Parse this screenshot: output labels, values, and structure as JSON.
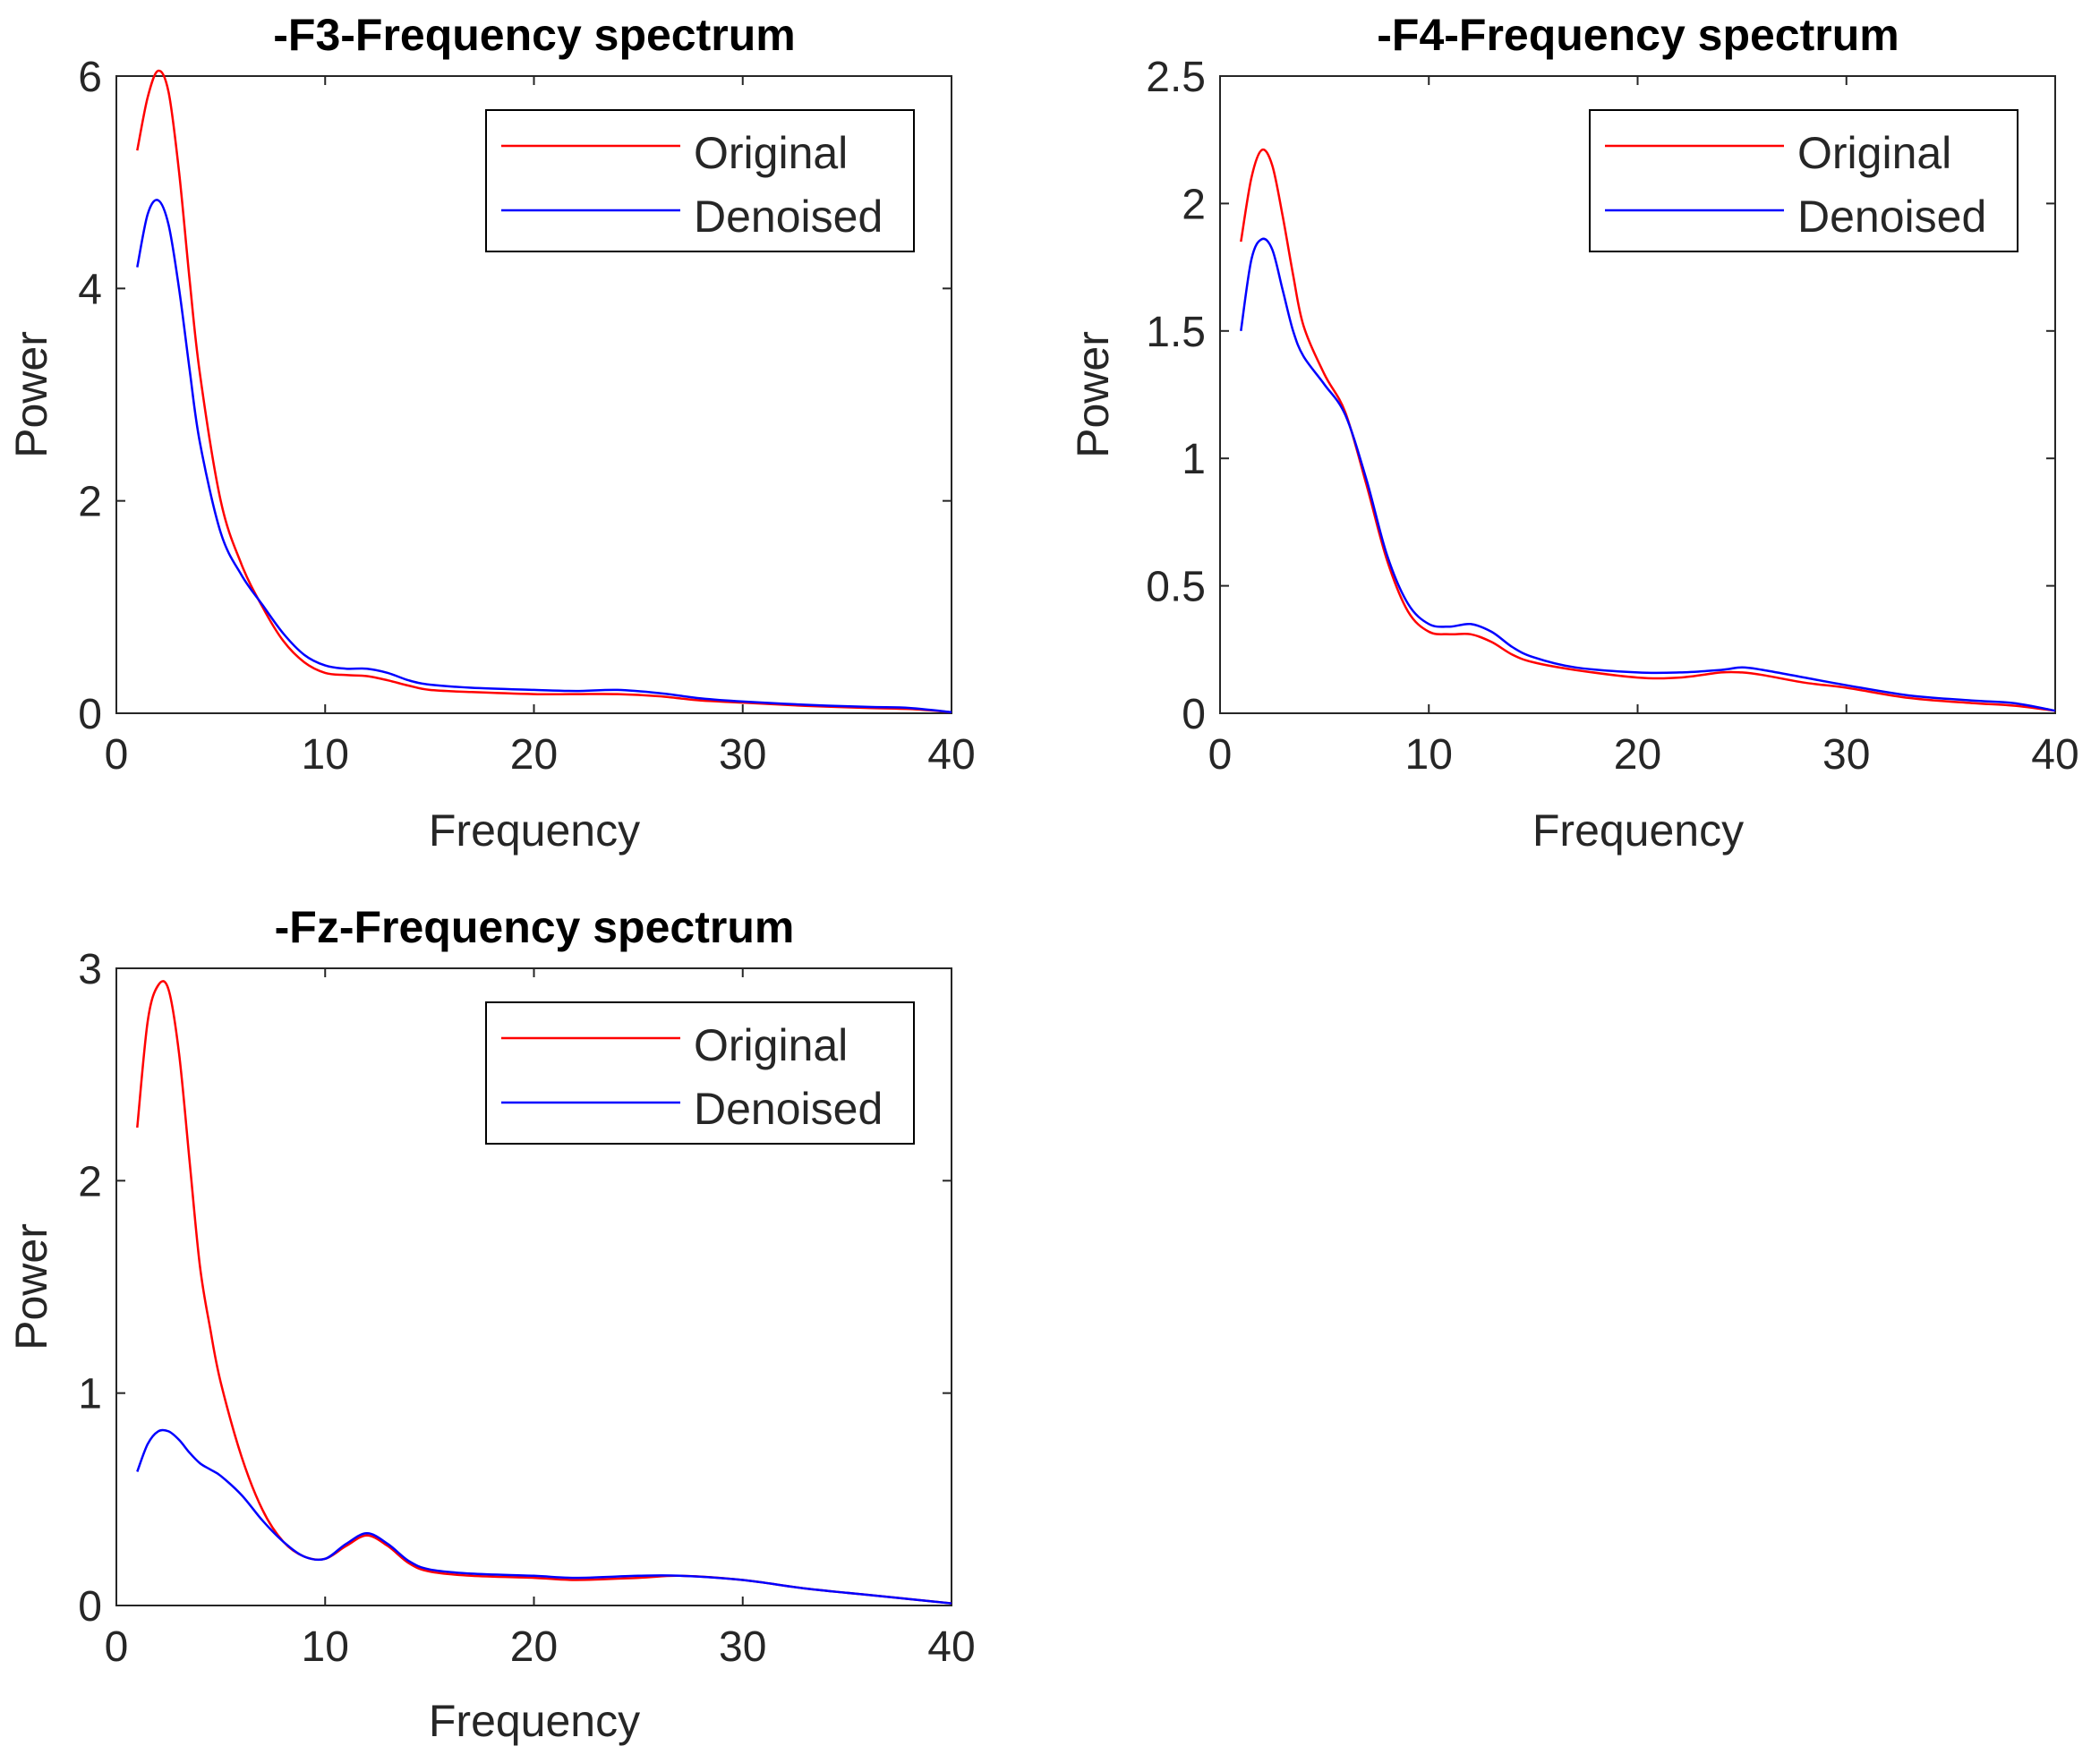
{
  "colors": {
    "original": "#ff0000",
    "denoised": "#0000ff",
    "axes": "#262626",
    "legend_border": "#000000"
  },
  "chart_data": [
    {
      "type": "line",
      "title": "-F3-Frequency spectrum",
      "xlabel": "Frequency",
      "ylabel": "Power",
      "xlim": [
        0,
        40
      ],
      "ylim": [
        0,
        6
      ],
      "xticks": [
        0,
        10,
        20,
        30,
        40
      ],
      "yticks": [
        0,
        2,
        4,
        6
      ],
      "grid": false,
      "legend_position": "top-right",
      "series": [
        {
          "name": "Original",
          "color": "#ff0000",
          "x": [
            1,
            1.5,
            2,
            2.5,
            3,
            3.5,
            4,
            5,
            6,
            7,
            8,
            9,
            10,
            11,
            12,
            13,
            14,
            15,
            17,
            20,
            22,
            24,
            26,
            28,
            30,
            33,
            36,
            38,
            40
          ],
          "y": [
            5.3,
            5.8,
            6.05,
            5.85,
            5.1,
            4.1,
            3.2,
            2.0,
            1.4,
            1.0,
            0.68,
            0.48,
            0.38,
            0.36,
            0.35,
            0.31,
            0.26,
            0.22,
            0.2,
            0.18,
            0.18,
            0.18,
            0.16,
            0.12,
            0.1,
            0.07,
            0.05,
            0.04,
            0.01
          ]
        },
        {
          "name": "Denoised",
          "color": "#0000ff",
          "x": [
            1,
            1.5,
            2,
            2.5,
            3,
            3.5,
            4,
            5,
            6,
            7,
            8,
            9,
            10,
            11,
            12,
            13,
            14,
            15,
            17,
            20,
            22,
            24,
            26,
            28,
            30,
            33,
            36,
            38,
            40
          ],
          "y": [
            4.2,
            4.7,
            4.83,
            4.6,
            4.0,
            3.25,
            2.55,
            1.7,
            1.3,
            1.02,
            0.75,
            0.55,
            0.45,
            0.42,
            0.42,
            0.38,
            0.31,
            0.27,
            0.24,
            0.22,
            0.21,
            0.22,
            0.19,
            0.14,
            0.11,
            0.08,
            0.06,
            0.05,
            0.01
          ]
        }
      ]
    },
    {
      "type": "line",
      "title": "-F4-Frequency spectrum",
      "xlabel": "Frequency",
      "ylabel": "Power",
      "xlim": [
        0,
        40
      ],
      "ylim": [
        0,
        2.5
      ],
      "xticks": [
        0,
        10,
        20,
        30,
        40
      ],
      "yticks": [
        0,
        0.5,
        1,
        1.5,
        2,
        2.5
      ],
      "grid": false,
      "legend_position": "top-right",
      "series": [
        {
          "name": "Original",
          "color": "#ff0000",
          "x": [
            1,
            1.5,
            2,
            2.5,
            3,
            3.5,
            4,
            5,
            6,
            7,
            8,
            9,
            10,
            11,
            12,
            13,
            14,
            15,
            17,
            20,
            22,
            24,
            25,
            26,
            28,
            30,
            33,
            36,
            38,
            40
          ],
          "y": [
            1.85,
            2.1,
            2.21,
            2.15,
            1.95,
            1.72,
            1.52,
            1.33,
            1.18,
            0.9,
            0.6,
            0.4,
            0.32,
            0.31,
            0.31,
            0.28,
            0.23,
            0.2,
            0.17,
            0.14,
            0.14,
            0.16,
            0.16,
            0.15,
            0.12,
            0.1,
            0.06,
            0.04,
            0.03,
            0.01
          ]
        },
        {
          "name": "Denoised",
          "color": "#0000ff",
          "x": [
            1,
            1.5,
            2,
            2.5,
            3,
            3.5,
            4,
            5,
            6,
            7,
            8,
            9,
            10,
            11,
            12,
            13,
            14,
            15,
            17,
            20,
            22,
            24,
            25,
            26,
            28,
            30,
            33,
            36,
            38,
            40
          ],
          "y": [
            1.5,
            1.78,
            1.86,
            1.82,
            1.66,
            1.5,
            1.4,
            1.29,
            1.17,
            0.92,
            0.62,
            0.43,
            0.35,
            0.34,
            0.35,
            0.32,
            0.26,
            0.22,
            0.18,
            0.16,
            0.16,
            0.17,
            0.18,
            0.17,
            0.14,
            0.11,
            0.07,
            0.05,
            0.04,
            0.01
          ]
        }
      ]
    },
    {
      "type": "line",
      "title": "-Fz-Frequency spectrum",
      "xlabel": "Frequency",
      "ylabel": "Power",
      "xlim": [
        0,
        40
      ],
      "ylim": [
        0,
        3
      ],
      "xticks": [
        0,
        10,
        20,
        30,
        40
      ],
      "yticks": [
        0,
        1,
        2,
        3
      ],
      "grid": false,
      "legend_position": "top-right",
      "series": [
        {
          "name": "Original",
          "color": "#ff0000",
          "x": [
            1,
            1.5,
            2,
            2.5,
            3,
            3.5,
            4,
            4.5,
            5,
            6,
            7,
            8,
            9,
            10,
            11,
            12,
            13,
            14,
            15,
            17,
            20,
            22,
            25,
            27,
            30,
            33,
            36,
            38,
            40
          ],
          "y": [
            2.25,
            2.75,
            2.92,
            2.9,
            2.6,
            2.1,
            1.6,
            1.3,
            1.05,
            0.7,
            0.45,
            0.3,
            0.23,
            0.22,
            0.28,
            0.33,
            0.28,
            0.2,
            0.16,
            0.14,
            0.13,
            0.12,
            0.13,
            0.14,
            0.12,
            0.08,
            0.05,
            0.03,
            0.01
          ]
        },
        {
          "name": "Denoised",
          "color": "#0000ff",
          "x": [
            1,
            1.5,
            2,
            2.5,
            3,
            3.5,
            4,
            4.5,
            5,
            6,
            7,
            8,
            9,
            10,
            11,
            12,
            13,
            14,
            15,
            17,
            20,
            22,
            25,
            27,
            30,
            33,
            36,
            38,
            40
          ],
          "y": [
            0.63,
            0.76,
            0.82,
            0.82,
            0.78,
            0.72,
            0.67,
            0.64,
            0.61,
            0.52,
            0.4,
            0.3,
            0.23,
            0.22,
            0.29,
            0.34,
            0.29,
            0.21,
            0.17,
            0.15,
            0.14,
            0.13,
            0.14,
            0.14,
            0.12,
            0.08,
            0.05,
            0.03,
            0.01
          ]
        }
      ]
    }
  ]
}
